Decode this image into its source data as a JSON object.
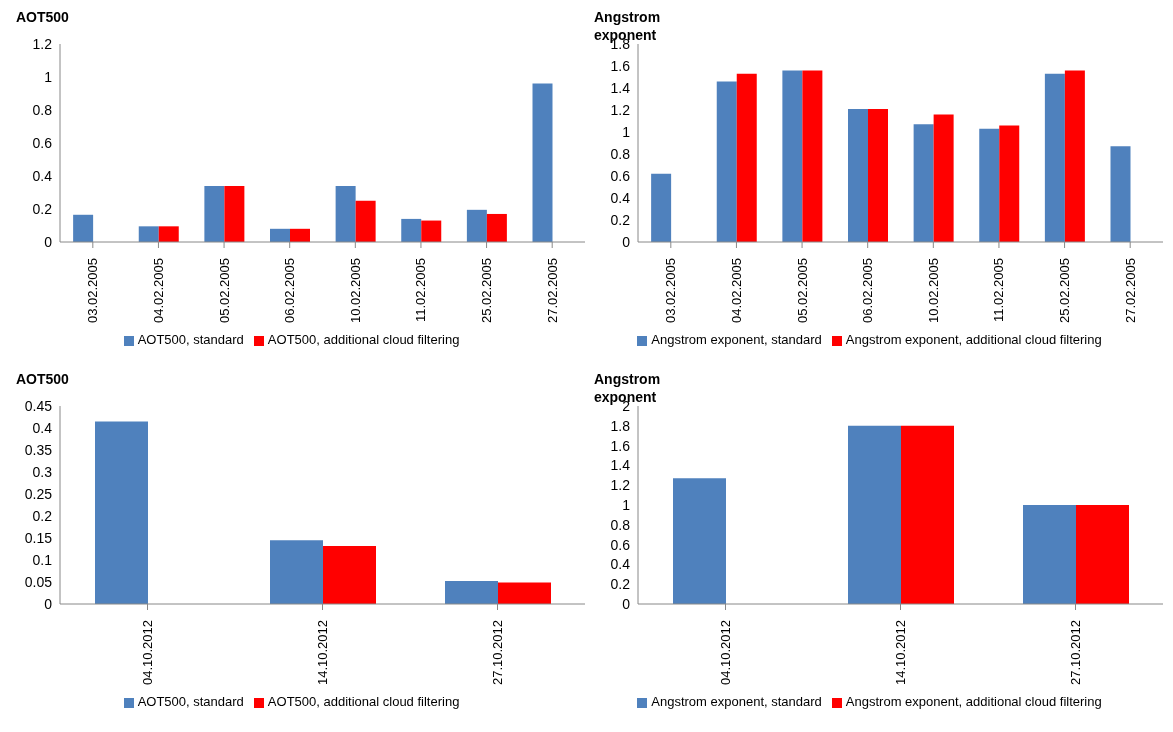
{
  "chart_data": [
    {
      "type": "bar",
      "ylabel": "AOT500",
      "categories": [
        "03.02.2005",
        "04.02.2005",
        "05.02.2005",
        "06.02.2005",
        "10.02.2005",
        "11.02.2005",
        "25.02.2005",
        "27.02.2005"
      ],
      "series": [
        {
          "name": "AOT500, standard",
          "color": "#4f81bd",
          "values": [
            0.165,
            0.095,
            0.34,
            0.08,
            0.34,
            0.14,
            0.195,
            0.96
          ]
        },
        {
          "name": "AOT500, additional cloud filtering",
          "color": "#ff0000",
          "values": [
            null,
            0.095,
            0.34,
            0.08,
            0.25,
            0.13,
            0.17,
            null
          ]
        }
      ],
      "ylim": [
        0,
        1.2
      ],
      "yticks": [
        0,
        0.2,
        0.4,
        0.6,
        0.8,
        1,
        1.2
      ],
      "grid": false,
      "legend": "bottom"
    },
    {
      "type": "bar",
      "ylabel": "Angstrom exponent",
      "categories": [
        "03.02.2005",
        "04.02.2005",
        "05.02.2005",
        "06.02.2005",
        "10.02.2005",
        "11.02.2005",
        "25.02.2005",
        "27.02.2005"
      ],
      "series": [
        {
          "name": "Angstrom exponent, standard",
          "color": "#4f81bd",
          "values": [
            0.62,
            1.46,
            1.56,
            1.21,
            1.07,
            1.03,
            1.53,
            0.87
          ]
        },
        {
          "name": "Angstrom exponent, additional cloud filtering",
          "color": "#ff0000",
          "values": [
            null,
            1.53,
            1.56,
            1.21,
            1.16,
            1.06,
            1.56,
            null
          ]
        }
      ],
      "ylim": [
        0,
        1.8
      ],
      "yticks": [
        0,
        0.2,
        0.4,
        0.6,
        0.8,
        1,
        1.2,
        1.4,
        1.6,
        1.8
      ],
      "grid": false,
      "legend": "bottom"
    },
    {
      "type": "bar",
      "ylabel": "AOT500",
      "categories": [
        "04.10.2012",
        "14.10.2012",
        "27.10.2012"
      ],
      "series": [
        {
          "name": "AOT500, standard",
          "color": "#4f81bd",
          "values": [
            0.415,
            0.145,
            0.052
          ]
        },
        {
          "name": "AOT500, additional cloud filtering",
          "color": "#ff0000",
          "values": [
            null,
            0.132,
            0.049
          ]
        }
      ],
      "ylim": [
        0,
        0.45
      ],
      "yticks": [
        0,
        0.05,
        0.1,
        0.15,
        0.2,
        0.25,
        0.3,
        0.35,
        0.4,
        0.45
      ],
      "grid": false,
      "legend": "bottom"
    },
    {
      "type": "bar",
      "ylabel": "Angstrom exponent",
      "categories": [
        "04.10.2012",
        "14.10.2012",
        "27.10.2012"
      ],
      "series": [
        {
          "name": "Angstrom exponent, standard",
          "color": "#4f81bd",
          "values": [
            1.27,
            1.8,
            1.0
          ]
        },
        {
          "name": "Angstrom exponent, additional cloud filtering",
          "color": "#ff0000",
          "values": [
            null,
            1.8,
            1.0
          ]
        }
      ],
      "ylim": [
        0,
        2
      ],
      "yticks": [
        0,
        0.2,
        0.4,
        0.6,
        0.8,
        1,
        1.2,
        1.4,
        1.6,
        1.8,
        2
      ],
      "grid": false,
      "legend": "bottom"
    }
  ]
}
